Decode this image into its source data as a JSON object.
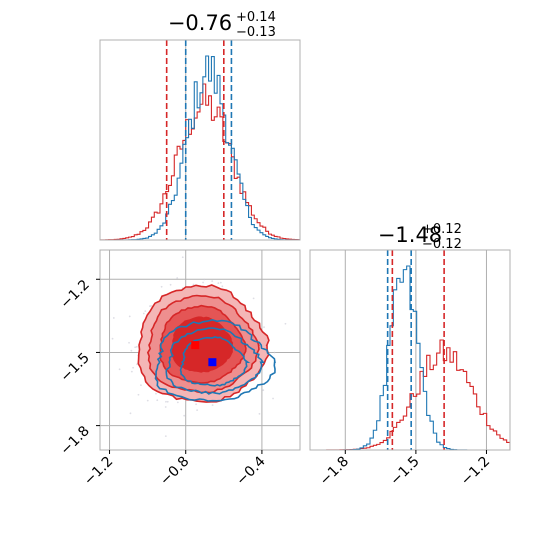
{
  "chart_data": {
    "type": "corner",
    "grid": true,
    "colors": {
      "series_a": "#d62728",
      "series_b": "#1f77b4",
      "marker_a": "#ff0000",
      "marker_b": "#0000ff"
    },
    "series": [
      {
        "color_key": "series_a",
        "param1": {
          "median": -0.7,
          "q16": -0.9,
          "q84": -0.6
        },
        "param2": {
          "median": -1.38,
          "q16": -1.6,
          "q84": -1.38
        },
        "marker": {
          "x": -0.75,
          "y": -1.47
        }
      },
      {
        "color_key": "series_b",
        "param1": {
          "median": -0.68,
          "q16": -0.8,
          "q84": -0.56
        },
        "param2": {
          "median": -1.55,
          "q16": -1.62,
          "q84": -1.52
        },
        "marker": {
          "x": -0.66,
          "y": -1.54
        }
      }
    ],
    "panels": {
      "hist_top": {
        "title": {
          "main": "−0.76",
          "sup": "+0.14",
          "sub": "−0.13"
        },
        "xlim": [
          -1.25,
          -0.2
        ],
        "gridlines": [
          -0.8
        ]
      },
      "scatter": {
        "xlim": [
          -1.25,
          -0.2
        ],
        "ylim": [
          -1.9,
          -1.08
        ],
        "x_ticks": [
          -1.2,
          -0.8,
          -0.4
        ],
        "x_tick_labels": [
          "−1.2",
          "−0.8",
          "−0.4"
        ],
        "y_ticks": [
          -1.2,
          -1.5,
          -1.8
        ],
        "y_tick_labels": [
          "−1.2",
          "−1.5",
          "−1.8"
        ]
      },
      "hist_right": {
        "title": {
          "main": "−1.48",
          "sup": "+0.12",
          "sub": "−0.12"
        },
        "xlim": [
          -1.95,
          -1.1
        ],
        "x_ticks": [
          -1.8,
          -1.5,
          -1.2
        ],
        "x_tick_labels": [
          "−1.8",
          "−1.5",
          "−1.2"
        ]
      }
    }
  }
}
